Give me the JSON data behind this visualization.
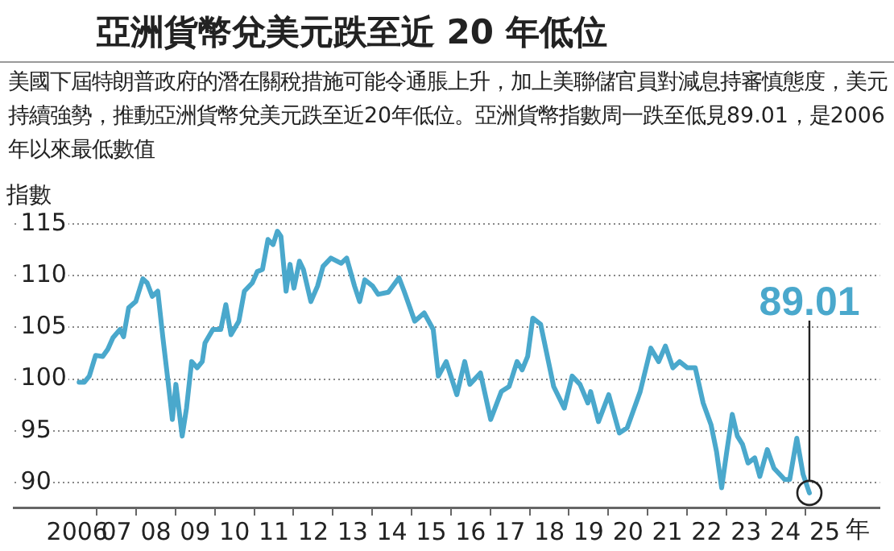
{
  "chart_data": {
    "type": "line",
    "title": "亞洲貨幣兌美元跌至近 20 年低位",
    "subtitle": "美國下屆特朗普政府的潛在關稅措施可能令通脹上升，加上美聯儲官員對減息持審慎態度，美元持續強勢，推動亞洲貨幣兌美元跌至近20年低位。亞洲貨幣指數周一跌至低見89.01，是2006年以來最低數值",
    "ylabel": "指數",
    "xlabel": "年",
    "x": [
      2006.05,
      2006.18,
      2006.31,
      2006.47,
      2006.65,
      2006.78,
      2006.91,
      2007.09,
      2007.18,
      2007.31,
      2007.49,
      2007.67,
      2007.78,
      2007.91,
      2008.05,
      2008.18,
      2008.31,
      2008.42,
      2008.51,
      2008.67,
      2008.78,
      2008.91,
      2009.05,
      2009.18,
      2009.25,
      2009.45,
      2009.65,
      2009.78,
      2009.91,
      2010.11,
      2010.25,
      2010.45,
      2010.58,
      2010.71,
      2010.85,
      2010.98,
      2011.09,
      2011.18,
      2011.31,
      2011.41,
      2011.51,
      2011.65,
      2011.75,
      2011.94,
      2012.11,
      2012.25,
      2012.45,
      2012.71,
      2012.85,
      2013.05,
      2013.18,
      2013.31,
      2013.51,
      2013.65,
      2013.91,
      2014.18,
      2014.31,
      2014.58,
      2014.82,
      2015.05,
      2015.18,
      2015.38,
      2015.65,
      2015.85,
      2015.98,
      2016.25,
      2016.51,
      2016.78,
      2016.98,
      2017.18,
      2017.31,
      2017.45,
      2017.58,
      2017.78,
      2018.11,
      2018.38,
      2018.58,
      2018.78,
      2018.98,
      2019.05,
      2019.25,
      2019.51,
      2019.78,
      2019.98,
      2020.31,
      2020.58,
      2020.78,
      2020.95,
      2021.14,
      2021.31,
      2021.51,
      2021.71,
      2021.91,
      2022.11,
      2022.25,
      2022.38,
      2022.51,
      2022.65,
      2022.78,
      2022.91,
      2023.05,
      2023.22,
      2023.35,
      2023.54,
      2023.71,
      2023.98,
      2024.11,
      2024.29,
      2024.45,
      2024.61
    ],
    "series": [
      {
        "color": "#4aa8cc",
        "values": [
          99.7,
          99.7,
          100.3,
          102.3,
          102.2,
          102.9,
          104.0,
          104.8,
          104.1,
          106.9,
          107.5,
          109.7,
          109.3,
          108.0,
          108.5,
          104.0,
          99.8,
          96.1,
          99.5,
          94.5,
          97.2,
          101.7,
          101.1,
          101.7,
          103.5,
          104.8,
          104.8,
          107.2,
          104.3,
          105.6,
          108.5,
          109.3,
          110.4,
          110.6,
          113.5,
          113.0,
          114.3,
          113.8,
          108.5,
          111.1,
          108.8,
          111.4,
          110.6,
          107.5,
          109.0,
          110.9,
          111.7,
          111.2,
          111.7,
          109.0,
          107.5,
          109.6,
          109.0,
          108.2,
          108.4,
          109.8,
          108.5,
          105.6,
          106.4,
          104.8,
          100.3,
          101.7,
          98.5,
          101.7,
          99.5,
          100.6,
          96.1,
          98.8,
          99.3,
          101.7,
          100.9,
          102.2,
          105.9,
          105.3,
          99.3,
          97.2,
          100.3,
          99.5,
          97.7,
          98.8,
          95.9,
          98.5,
          94.8,
          95.3,
          98.8,
          103.0,
          101.7,
          103.2,
          101.1,
          101.7,
          101.1,
          101.1,
          97.7,
          95.6,
          93.0,
          89.5,
          93.0,
          96.6,
          94.5,
          93.7,
          91.9,
          92.4,
          90.6,
          93.2,
          91.4,
          90.3,
          90.3,
          94.3,
          90.8,
          89.01
        ]
      },
      {
        "type": "scatter",
        "color": "#222222",
        "marker": "circle",
        "x": [
          2024.61
        ],
        "values": [
          89.01
        ]
      }
    ],
    "annotations": [
      {
        "text": "89.01",
        "x": 2024.61,
        "y": 89.01
      }
    ],
    "xlim": [
      2004.4,
      2026.4
    ],
    "xticks": [
      2006,
      {
        "value": 2006.5,
        "label": null
      },
      {
        "value": 2007,
        "label": "07"
      },
      {
        "value": 2007.5,
        "label": null
      },
      {
        "value": 2008,
        "label": "08"
      },
      {
        "value": 2008.5,
        "label": null
      },
      {
        "value": 2009,
        "label": "09"
      },
      {
        "value": 2009.5,
        "label": null
      },
      {
        "value": 2010,
        "label": "10"
      },
      {
        "value": 2010.5,
        "label": null
      },
      {
        "value": 2011,
        "label": "11"
      },
      {
        "value": 2011.5,
        "label": null
      },
      {
        "value": 2012,
        "label": "12"
      },
      {
        "value": 2012.5,
        "label": null
      },
      {
        "value": 2013,
        "label": "13"
      },
      {
        "value": 2013.5,
        "label": null
      },
      {
        "value": 2014,
        "label": "14"
      },
      {
        "value": 2014.5,
        "label": null
      },
      {
        "value": 2015,
        "label": "15"
      },
      {
        "value": 2015.5,
        "label": null
      },
      {
        "value": 2016,
        "label": "16"
      },
      {
        "value": 2016.5,
        "label": null
      },
      {
        "value": 2017,
        "label": "17"
      },
      {
        "value": 2017.5,
        "label": null
      },
      {
        "value": 2018,
        "label": "18"
      },
      {
        "value": 2018.5,
        "label": null
      },
      {
        "value": 2019,
        "label": "19"
      },
      {
        "value": 2019.5,
        "label": null
      },
      {
        "value": 2020,
        "label": "20"
      },
      {
        "value": 2020.5,
        "label": null
      },
      {
        "value": 2021,
        "label": "21"
      },
      {
        "value": 2021.5,
        "label": null
      },
      {
        "value": 2022,
        "label": "22"
      },
      {
        "value": 2022.5,
        "label": null
      },
      {
        "value": 2023,
        "label": "23"
      },
      {
        "value": 2023.5,
        "label": null
      },
      {
        "value": 2024,
        "label": "24"
      },
      {
        "value": 2024.5,
        "label": null
      },
      {
        "value": 2025,
        "label": "25"
      }
    ],
    "ylim": [
      87.6,
      115
    ],
    "yticks": [
      90,
      95,
      100,
      105,
      110,
      115
    ],
    "grid": "y",
    "legend": false,
    "marker": "none",
    "line_style": "solid"
  }
}
